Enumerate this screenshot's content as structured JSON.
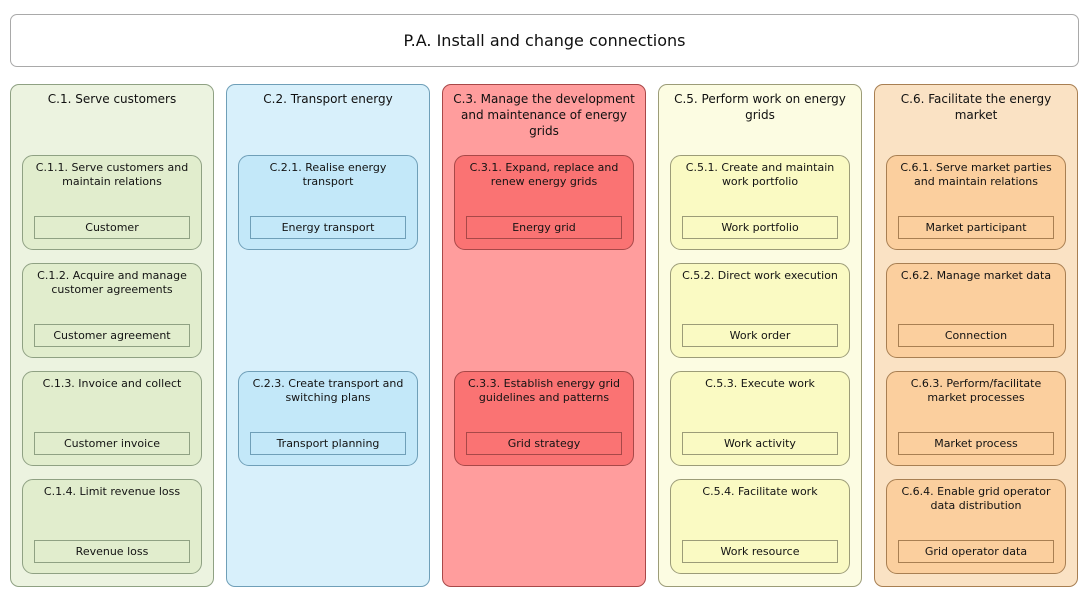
{
  "page": {
    "title": "P.A. Install and change connections"
  },
  "columns": [
    {
      "title": "C.1. Serve customers",
      "colors": {
        "bg": "#ecf3e0",
        "card_bg": "#e1edcd",
        "border": "#8fa183"
      },
      "cards": [
        {
          "slot": 0,
          "heading": "C.1.1. Serve customers and maintain relations",
          "label": "Customer"
        },
        {
          "slot": 1,
          "heading": "C.1.2. Acquire and manage customer agreements",
          "label": "Customer agreement"
        },
        {
          "slot": 2,
          "heading": "C.1.3. Invoice and collect",
          "label": "Customer invoice"
        },
        {
          "slot": 3,
          "heading": "C.1.4. Limit revenue loss",
          "label": "Revenue loss"
        }
      ]
    },
    {
      "title": "C.2. Transport energy",
      "colors": {
        "bg": "#d8f0fb",
        "card_bg": "#c3e8f9",
        "border": "#6f9fb8"
      },
      "cards": [
        {
          "slot": 0,
          "heading": "C.2.1. Realise energy transport",
          "label": "Energy transport"
        },
        {
          "slot": 2,
          "heading": "C.2.3. Create transport and switching plans",
          "label": "Transport planning"
        }
      ]
    },
    {
      "title": "C.3. Manage the development and maintenance of energy grids",
      "colors": {
        "bg": "#ff9d9d",
        "card_bg": "#fa7373",
        "border": "#a84848"
      },
      "cards": [
        {
          "slot": 0,
          "heading": "C.3.1. Expand, replace and renew energy grids",
          "label": "Energy grid"
        },
        {
          "slot": 2,
          "heading": "C.3.3. Establish energy grid guidelines and patterns",
          "label": "Grid strategy"
        }
      ]
    },
    {
      "title": "C.5. Perform work on energy grids",
      "colors": {
        "bg": "#fcfce2",
        "card_bg": "#fafac3",
        "border": "#9c9c78"
      },
      "cards": [
        {
          "slot": 0,
          "heading": "C.5.1. Create and maintain work portfolio",
          "label": "Work portfolio"
        },
        {
          "slot": 1,
          "heading": "C.5.2. Direct work execution",
          "label": "Work order"
        },
        {
          "slot": 2,
          "heading": "C.5.3. Execute work",
          "label": "Work activity"
        },
        {
          "slot": 3,
          "heading": "C.5.4. Facilitate work",
          "label": "Work resource"
        }
      ]
    },
    {
      "title": "C.6. Facilitate the energy market",
      "colors": {
        "bg": "#fae2c4",
        "card_bg": "#fbcf9e",
        "border": "#a87f52"
      },
      "cards": [
        {
          "slot": 0,
          "heading": "C.6.1. Serve market parties and maintain relations",
          "label": "Market participant"
        },
        {
          "slot": 1,
          "heading": "C.6.2. Manage market data",
          "label": "Connection"
        },
        {
          "slot": 2,
          "heading": "C.6.3. Perform/facilitate market processes",
          "label": "Market process"
        },
        {
          "slot": 3,
          "heading": "C.6.4. Enable grid operator data distribution",
          "label": "Grid operator data"
        }
      ]
    }
  ]
}
